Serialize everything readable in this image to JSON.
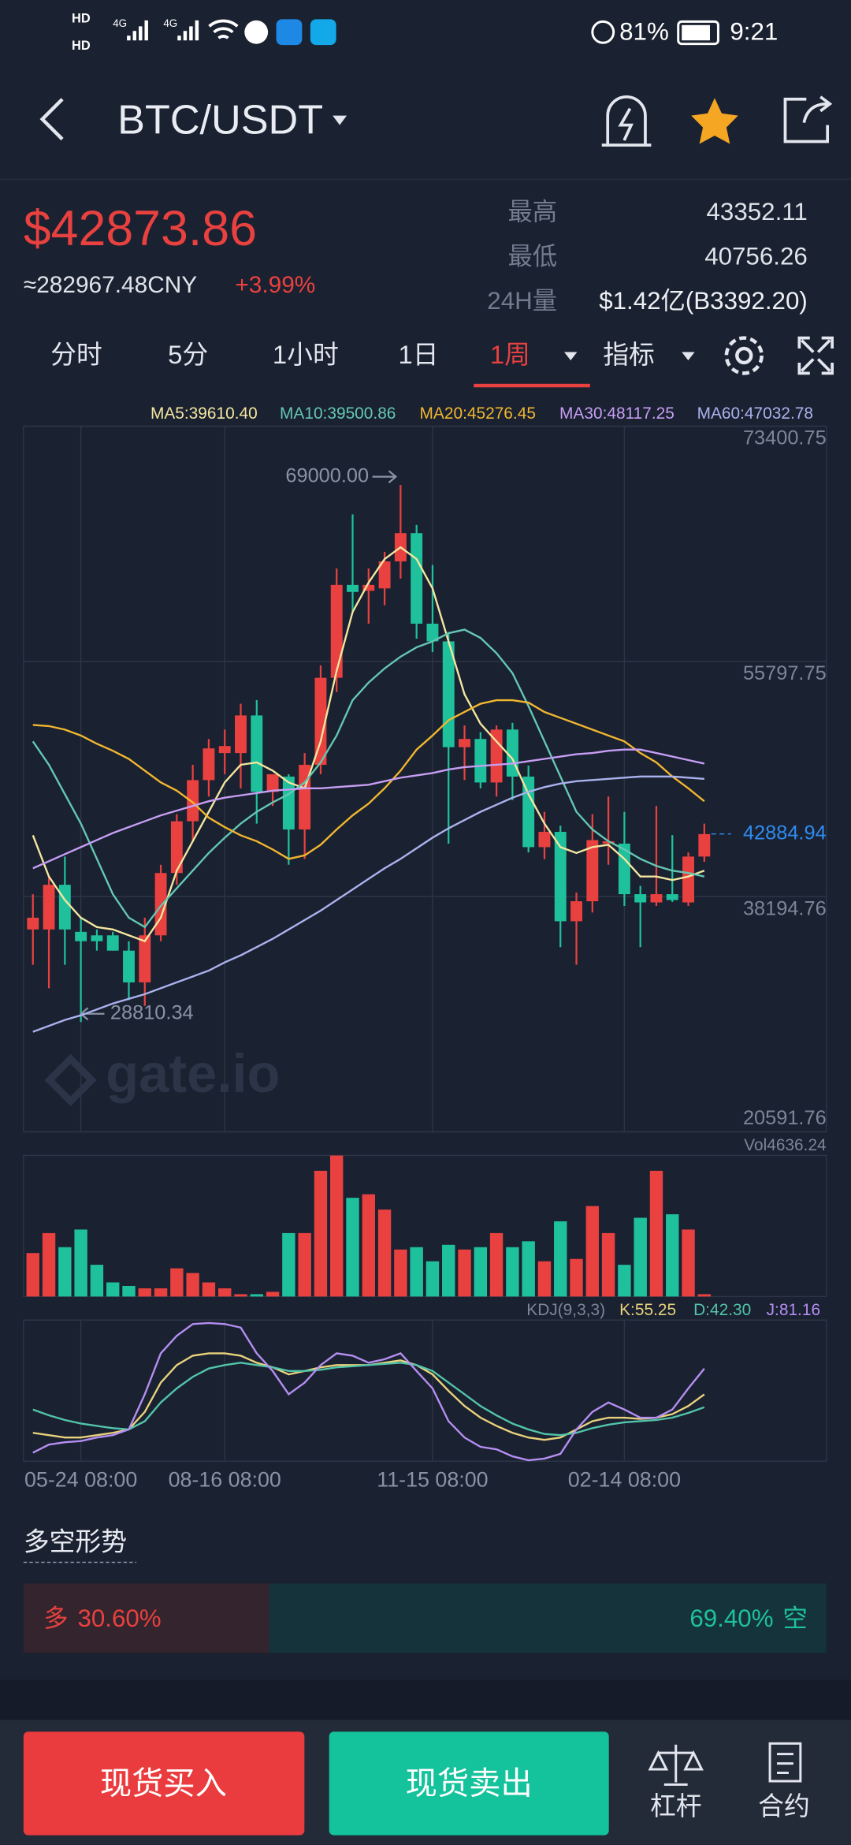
{
  "status_bar": {
    "sims": [
      "HD",
      "HD"
    ],
    "network": [
      "4G",
      "4G"
    ],
    "battery": "81%",
    "time": "9:21"
  },
  "header": {
    "pair": "BTC/USDT"
  },
  "ticker": {
    "price": "$42873.86",
    "cny": "≈282967.48CNY",
    "change": "+3.99%",
    "stats": [
      {
        "label": "最高",
        "value": "43352.11"
      },
      {
        "label": "最低",
        "value": "40756.26"
      },
      {
        "label": "24H量",
        "value": "$1.42亿(B3392.20)"
      }
    ]
  },
  "tabs": [
    "分时",
    "5分",
    "1小时",
    "1日",
    "1周",
    "指标"
  ],
  "active_tab": 4,
  "chart_data": [
    {
      "type": "candlestick",
      "categories": [
        null,
        null,
        null,
        "05-24 08:00",
        null,
        null,
        null,
        null,
        null,
        null,
        null,
        null,
        "08-16 08:00",
        null,
        null,
        null,
        null,
        null,
        null,
        null,
        null,
        null,
        null,
        null,
        null,
        "11-15 08:00",
        null,
        null,
        null,
        null,
        null,
        null,
        null,
        null,
        null,
        null,
        null,
        "02-14 08:00",
        null,
        null,
        null,
        null,
        null
      ],
      "open": [
        35737,
        35737,
        39081,
        35561,
        35297,
        35297,
        34153,
        31777,
        35297,
        39961,
        43833,
        46913,
        48937,
        48937,
        51753,
        46033,
        47177,
        43217,
        48057,
        54569,
        61521,
        61081,
        61257,
        63281,
        65393,
        58617,
        57297,
        49377,
        49993,
        46737,
        50697,
        47177,
        41897,
        43041,
        36353,
        37849,
        42161,
        42161,
        38377,
        37761,
        38377,
        37761,
        41193
      ],
      "high": [
        38377,
        39697,
        41193,
        36617,
        35737,
        35561,
        34857,
        36617,
        40577,
        44361,
        48057,
        49993,
        50697,
        52633,
        52897,
        47177,
        47353,
        48937,
        55500,
        62753,
        66801,
        62753,
        64000,
        69000,
        66000,
        63017,
        58000,
        51000,
        50500,
        51000,
        51200,
        48000,
        44537,
        43500,
        38500,
        44361,
        45681,
        44537,
        39000,
        44977,
        42800,
        41500,
        43657
      ],
      "low": [
        33097,
        31337,
        33097,
        28810.34,
        34153,
        34153,
        30457,
        30017,
        34857,
        39081,
        42425,
        45681,
        47353,
        46297,
        43657,
        44977,
        40577,
        41017,
        47353,
        53500,
        59497,
        58617,
        60000,
        62000,
        57500,
        56500,
        42161,
        46913,
        46297,
        45681,
        45417,
        41500,
        41000,
        34417,
        33097,
        37000,
        40577,
        37497,
        34417,
        37500,
        37800,
        37500,
        40800
      ],
      "close": [
        36617,
        39081,
        35737,
        34857,
        34857,
        34153,
        31777,
        35297,
        39961,
        43833,
        46913,
        49289,
        49465,
        51753,
        46033,
        47353,
        43217,
        48057,
        54569,
        61521,
        60993,
        61521,
        63281,
        65393,
        58617,
        57297,
        49377,
        49993,
        46737,
        50697,
        47177,
        41897,
        43041,
        36353,
        37849,
        42425,
        42337,
        38377,
        37761,
        38377,
        37937,
        41193,
        42873.86
      ],
      "high_labels": [
        null,
        null,
        null,
        null,
        null,
        null,
        null,
        null,
        null,
        null,
        null,
        null,
        null,
        null,
        null,
        null,
        null,
        null,
        null,
        null,
        null,
        null,
        null,
        "69000.00",
        null,
        null,
        null,
        null,
        null,
        null,
        null,
        null,
        null,
        null,
        null,
        null,
        null,
        null,
        null,
        null,
        null,
        null,
        null
      ],
      "low_labels": [
        null,
        null,
        null,
        "28810.34",
        null,
        null,
        null,
        null,
        null,
        null,
        null,
        null,
        null,
        null,
        null,
        null,
        null,
        null,
        null,
        null,
        null,
        null,
        null,
        null,
        null,
        null,
        null,
        null,
        null,
        null,
        null,
        null,
        null,
        null,
        null,
        null,
        null,
        null,
        null,
        null,
        null,
        null,
        null
      ],
      "up_color": "#e8413f",
      "down_color": "#1fc19c",
      "ylim": [
        20591.76,
        73400.75
      ],
      "yticks": [
        73400.75,
        55797.75,
        38194.76,
        20591.76
      ],
      "grid": true,
      "last_price": 42884.94,
      "watermark": "gate.io",
      "lines": [
        {
          "name": "MA5:39610.40",
          "color": "#f3e6a0",
          "values": [
            42777,
            39697,
            37937,
            36617,
            35913,
            35737,
            35297,
            34857,
            36617,
            40137,
            42337,
            44537,
            46737,
            48057,
            48233,
            47617,
            46737,
            46297,
            49817,
            55097,
            59497,
            61697,
            63457,
            64337,
            63457,
            61257,
            57297,
            53337,
            51137,
            49817,
            48497,
            45857,
            43657,
            41897,
            41457,
            41897,
            42073,
            41017,
            39697,
            39697,
            39433,
            39697,
            40137
          ]
        },
        {
          "name": "MA10:39500.86",
          "color": "#64c7b3",
          "values": [
            49817,
            48057,
            45857,
            43657,
            41017,
            38377,
            36617,
            35913,
            37497,
            38817,
            40137,
            41457,
            42601,
            43657,
            44537,
            45241,
            45857,
            46737,
            48233,
            50257,
            52897,
            54217,
            55273,
            56153,
            56857,
            57297,
            57913,
            58177,
            57561,
            56417,
            54921,
            52457,
            49817,
            47177,
            44537,
            43217,
            42337,
            41721,
            41017,
            40489,
            40137,
            39961,
            39697
          ]
        },
        {
          "name": "MA20:45276.45",
          "color": "#f1b630",
          "values": [
            51049,
            50961,
            50697,
            50257,
            49641,
            49113,
            48497,
            47617,
            46737,
            46121,
            45241,
            44097,
            43393,
            42777,
            42337,
            41721,
            41017,
            41281,
            42073,
            43217,
            44273,
            45153,
            46297,
            47617,
            49201,
            50257,
            51401,
            52017,
            52633,
            52897,
            52897,
            52721,
            52017,
            51577,
            51137,
            50697,
            50257,
            49817,
            48937,
            48233,
            47177,
            46297,
            45329
          ]
        },
        {
          "name": "MA30:48117.25",
          "color": "#c69ef4",
          "values": [
            40313,
            40841,
            41369,
            41897,
            42425,
            42953,
            43393,
            43833,
            44273,
            44625,
            44977,
            45329,
            45593,
            45769,
            45945,
            46121,
            46209,
            46297,
            46297,
            46385,
            46473,
            46561,
            46825,
            47089,
            47265,
            47441,
            47705,
            47881,
            47969,
            48057,
            48145,
            48321,
            48497,
            48673,
            48849,
            48937,
            49113,
            49201,
            49201,
            48937,
            48673,
            48409,
            48145
          ]
        },
        {
          "name": "MA60:47032.78",
          "color": "#aab2ee",
          "values": [
            28081,
            28521,
            28961,
            29313,
            29753,
            30193,
            30545,
            30897,
            31337,
            31777,
            32217,
            32657,
            33273,
            33801,
            34417,
            35033,
            35737,
            36441,
            37145,
            37937,
            38729,
            39521,
            40313,
            41017,
            41809,
            42601,
            43305,
            43921,
            44537,
            45065,
            45593,
            46033,
            46385,
            46649,
            46825,
            46913,
            47001,
            47089,
            47177,
            47177,
            47177,
            47089,
            47001
          ]
        }
      ]
    },
    {
      "type": "bar",
      "title": "Vol4636.24",
      "ylim": [
        0,
        4636.24
      ],
      "values": [
        1428,
        2084,
        1621,
        2200,
        1042,
        463,
        347,
        270,
        270,
        926,
        772,
        463,
        270,
        77,
        77,
        154,
        2084,
        2084,
        4130,
        4632,
        3242,
        3358,
        2856,
        1544,
        1621,
        1158,
        1698,
        1544,
        1621,
        2084,
        1621,
        1814,
        1158,
        2470,
        1235,
        2972,
        2084,
        1042,
        2586,
        4130,
        2702,
        2200,
        77
      ]
    },
    {
      "type": "line",
      "title": "KDJ(9,3,3)",
      "ylim": [
        -12,
        130
      ],
      "series": [
        {
          "name": "K:55.25",
          "color": "#e9d27c",
          "values": [
            16.5,
            14.1,
            11.8,
            11.8,
            14.1,
            16.5,
            20,
            37.6,
            67.1,
            84.7,
            94.1,
            96.5,
            96.5,
            94.1,
            87.1,
            82.4,
            75.3,
            78.8,
            82.4,
            84.7,
            84.7,
            84.7,
            87.1,
            89.4,
            84.7,
            75.3,
            58.8,
            43.5,
            31.8,
            23.5,
            16.5,
            11.8,
            9.4,
            11.8,
            20,
            28.2,
            31.8,
            31.8,
            30.6,
            31.8,
            35.3,
            43.5,
            55.25
          ]
        },
        {
          "name": "D:42.30",
          "color": "#52c4a9",
          "values": [
            40,
            34.1,
            29.4,
            25.9,
            23.5,
            21.2,
            20,
            28.2,
            47.1,
            61.2,
            72.9,
            81.2,
            84.7,
            87.1,
            84.7,
            82.4,
            78.8,
            78.8,
            80,
            82.4,
            83.5,
            84.7,
            85.9,
            87.1,
            84.7,
            78.8,
            67.1,
            55.3,
            43.5,
            34.1,
            25.9,
            20,
            15.3,
            14.1,
            16.5,
            21.2,
            24.7,
            27.1,
            28.2,
            29.4,
            31.8,
            36.5,
            42.3
          ]
        },
        {
          "name": "J:81.16",
          "color": "#b58ef2",
          "values": [
            -3.5,
            4.7,
            7.1,
            8.2,
            11.8,
            14.1,
            20,
            55.3,
            96.5,
            114.1,
            126,
            127,
            126,
            122.4,
            96.5,
            78.8,
            55.3,
            67.1,
            84.7,
            96.5,
            94.1,
            87.1,
            90.6,
            96.5,
            78.8,
            61.2,
            28.2,
            11.8,
            2.4,
            0,
            -7.1,
            -11,
            -9.4,
            -4.7,
            20,
            37.6,
            47.1,
            40,
            31.8,
            31.8,
            40,
            61.2,
            81.16
          ]
        }
      ]
    }
  ],
  "sentiment": {
    "title": "多空形势",
    "long": {
      "label": "多",
      "value": 30.6,
      "value_label": "30.60%"
    },
    "short": {
      "label": "空",
      "value": 69.4,
      "value_label": "69.40%"
    }
  },
  "actions": [
    "现货买入",
    "现货卖出",
    "杠杆",
    "合约"
  ]
}
